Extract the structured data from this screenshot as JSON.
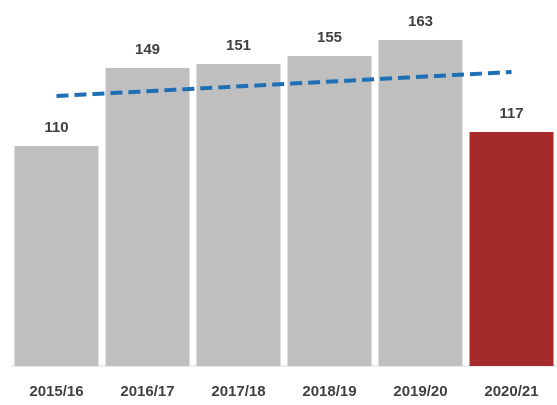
{
  "chart_data": {
    "type": "bar",
    "categories": [
      "2015/16",
      "2016/17",
      "2017/18",
      "2018/19",
      "2019/20",
      "2020/21"
    ],
    "values": [
      110,
      149,
      151,
      155,
      163,
      117
    ],
    "colors": [
      "#bfbfbf",
      "#bfbfbf",
      "#bfbfbf",
      "#bfbfbf",
      "#bfbfbf",
      "#a52a2a"
    ],
    "ylim": [
      0,
      183
    ],
    "trend": {
      "values": [
        135,
        137.4,
        139.8,
        142.2,
        144.6,
        147
      ],
      "color": "#1f6fb5",
      "dashed": true
    }
  }
}
